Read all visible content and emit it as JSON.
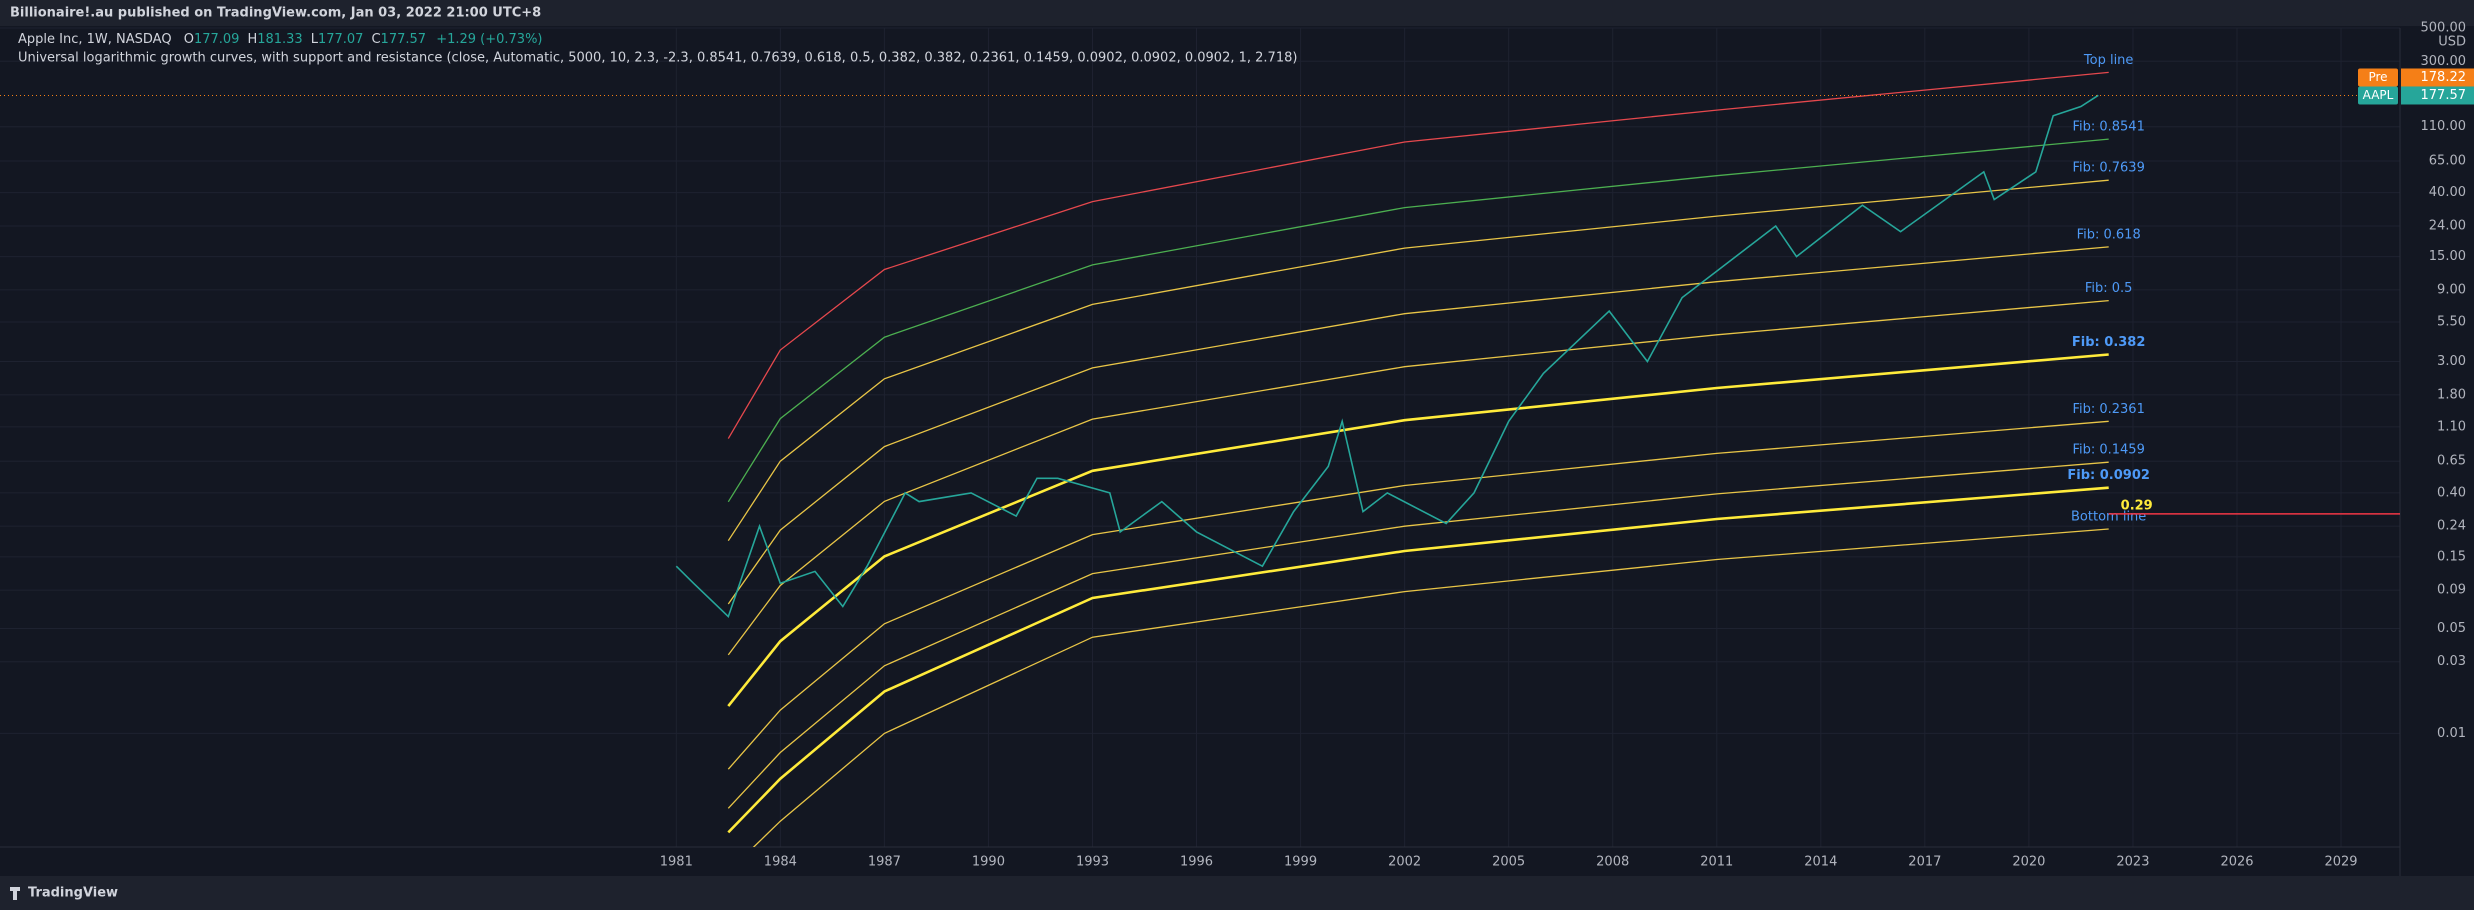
{
  "header": {
    "publisher": "Billionaire!.au published on TradingView.com, Jan 03, 2022 21:00 UTC+8"
  },
  "footer": {
    "brand": "TradingView"
  },
  "chart_data": {
    "type": "line",
    "log_scale": true,
    "grid": true,
    "legend_position": "top-left",
    "ohlc": [
      {
        "label": "O",
        "value": 177.09
      },
      {
        "label": "H",
        "value": 181.33
      },
      {
        "label": "L",
        "value": 177.07
      },
      {
        "label": "C",
        "value": 177.57
      }
    ],
    "change": "+1.29 (+0.73%)",
    "indicator": "Universal logarithmic growth curves, with support and resistance (close, Automatic, 5000, 10, 2.3, -2.3, 0.8541, 0.7639, 0.618, 0.5, 0.382, 0.382, 0.2361, 0.1459, 0.0902, 0.0902, 0.0902, 1, 2.718)",
    "y_unit": "USD",
    "x": [
      1982.5,
      1984,
      1987,
      1993,
      2002,
      2011,
      2022.3
    ],
    "series": [
      {
        "name": "Top line",
        "color": "#e5484d",
        "values": [
          0.92,
          3.58,
          12.3,
          34.9,
          87,
          142,
          253
        ]
      },
      {
        "name": "Fib: 0.8541",
        "color": "#4caf50",
        "values": [
          0.349,
          1.25,
          4.36,
          13.2,
          31.8,
          51.9,
          91.0
        ]
      },
      {
        "name": "Fib: 0.7639",
        "color": "#e8c547",
        "values": [
          0.192,
          0.65,
          2.3,
          7.21,
          17.1,
          27.9,
          48.4
        ]
      },
      {
        "name": "Fib: 0.618",
        "color": "#e8c547",
        "values": [
          0.0728,
          0.226,
          0.813,
          2.72,
          6.25,
          10.2,
          17.4
        ]
      },
      {
        "name": "Fib: 0.5",
        "color": "#e8c547",
        "values": [
          0.0333,
          0.0966,
          0.351,
          1.24,
          2.77,
          4.52,
          7.64
        ]
      },
      {
        "name": "Fib: 0.382",
        "color": "#ffeb3b",
        "bold": true,
        "values": [
          0.0152,
          0.0411,
          0.151,
          0.561,
          1.22,
          2.0,
          3.34
        ]
      },
      {
        "name": "Fib: 0.2361",
        "color": "#e8c547",
        "values": [
          0.00577,
          0.0143,
          0.0537,
          0.211,
          0.448,
          0.733,
          1.2
        ]
      },
      {
        "name": "Fib: 0.1459",
        "color": "#e8c547",
        "values": [
          0.00317,
          0.00746,
          0.0282,
          0.116,
          0.24,
          0.394,
          0.64
        ]
      },
      {
        "name": "Fib: 0.0902",
        "color": "#ffeb3b",
        "bold": true,
        "values": [
          0.00219,
          0.00499,
          0.019,
          0.0798,
          0.164,
          0.268,
          0.433
        ]
      },
      {
        "name": "Bottom line",
        "color": "#e8c547",
        "values": [
          0.0012,
          0.0026,
          0.01,
          0.0437,
          0.088,
          0.144,
          0.23
        ]
      },
      {
        "name": "Apple Inc, 1W, NASDAQ",
        "color": "#26a69a",
        "price": true,
        "x": [
          1981,
          1981.5,
          1982.5,
          1983.4,
          1984,
          1985,
          1985.8,
          1986.5,
          1987.6,
          1988,
          1989.5,
          1990.8,
          1991.4,
          1992,
          1993.5,
          1993.8,
          1995,
          1996,
          1997.9,
          1998.8,
          1999.8,
          2000.2,
          2000.8,
          2001.5,
          2003.2,
          2004,
          2005,
          2006,
          2007.9,
          2009,
          2010,
          2011,
          2012.7,
          2013.3,
          2015.2,
          2016.3,
          2018.7,
          2019,
          2020.2,
          2020.7,
          2021.5,
          2022
        ],
        "values": [
          0.13,
          0.1,
          0.06,
          0.24,
          0.1,
          0.12,
          0.07,
          0.13,
          0.4,
          0.35,
          0.4,
          0.28,
          0.5,
          0.5,
          0.4,
          0.22,
          0.35,
          0.22,
          0.13,
          0.3,
          0.6,
          1.2,
          0.3,
          0.4,
          0.25,
          0.4,
          1.2,
          2.5,
          6.5,
          3.0,
          8,
          12,
          24,
          15,
          33,
          22,
          55,
          36,
          55,
          130,
          150,
          178
        ]
      }
    ],
    "price_line": {
      "value": 0.29,
      "color": "#f23645",
      "label_color": "#ffeb3b"
    },
    "last_price": {
      "name": "AAPL",
      "value": 177.57,
      "color": "#26a69a"
    },
    "pre_price": {
      "name": "Pre",
      "value": 178.22,
      "color": "#f57f17"
    },
    "xlim": [
      1961.5,
      2030.7
    ],
    "xticks": [
      1981,
      1984,
      1987,
      1990,
      1993,
      1996,
      1999,
      2002,
      2005,
      2008,
      2011,
      2014,
      2017,
      2020,
      2023,
      2026,
      2029
    ],
    "ylim": [
      0.00175,
      500
    ],
    "yticks": [
      {
        "value": 500,
        "label": "500.00"
      },
      {
        "value": 300,
        "label": "300.00"
      },
      {
        "value": 110,
        "label": "110.00"
      },
      {
        "value": 65,
        "label": "65.00"
      },
      {
        "value": 40,
        "label": "40.00"
      },
      {
        "value": 24,
        "label": "24.00"
      },
      {
        "value": 15,
        "label": "15.00"
      },
      {
        "value": 9,
        "label": "9.00"
      },
      {
        "value": 5.5,
        "label": "5.50"
      },
      {
        "value": 3,
        "label": "3.00"
      },
      {
        "value": 1.8,
        "label": "1.80"
      },
      {
        "value": 1.1,
        "label": "1.10"
      },
      {
        "value": 0.65,
        "label": "0.65"
      },
      {
        "value": 0.4,
        "label": "0.40"
      },
      {
        "value": 0.24,
        "label": "0.24"
      },
      {
        "value": 0.15,
        "label": "0.15"
      },
      {
        "value": 0.09,
        "label": "0.09"
      },
      {
        "value": 0.05,
        "label": "0.05"
      },
      {
        "value": 0.03,
        "label": "0.03"
      },
      {
        "value": 0.01,
        "label": "0.01"
      }
    ]
  }
}
